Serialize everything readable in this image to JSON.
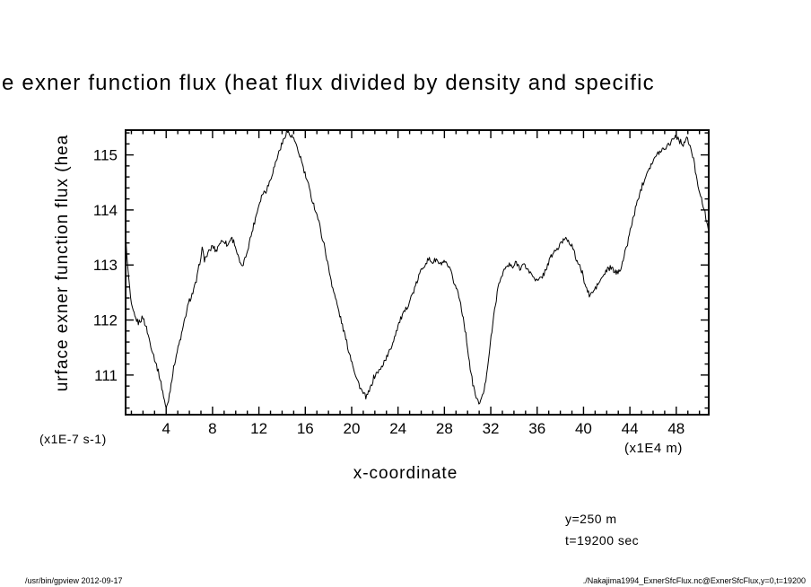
{
  "title_visible": "e exner function flux (heat flux divided by density and specific",
  "ylabel_visible": "urface exner function flux (hea",
  "xlabel": "x-coordinate",
  "y_unit_label": "(x1E-7 s-1)",
  "x_unit_label": "(x1E4 m)",
  "annotations": {
    "line1": "y=250 m",
    "line2": "t=19200 sec"
  },
  "footer_left": "/usr/bin/gpview  2012-09-17",
  "footer_right": "./Nakajima1994_ExnerSfcFlux.nc@ExnerSfcFlux,y=0,t=19200",
  "chart_data": {
    "type": "line",
    "title": "surface exner function flux (heat flux divided by density and specific heat)",
    "xlabel": "x-coordinate",
    "ylabel": "surface exner function flux (heat flux divided by density and specific heat)",
    "x_units": "x1E4 m",
    "y_units": "x1E-7 s-1",
    "xlim": [
      0.5,
      50.8
    ],
    "ylim": [
      110.28,
      115.45
    ],
    "x_ticks": [
      4,
      8,
      12,
      16,
      20,
      24,
      28,
      32,
      36,
      40,
      44,
      48
    ],
    "y_ticks": [
      111,
      112,
      113,
      114,
      115
    ],
    "x_minor_step": 1,
    "y_minor_step": 0.2,
    "grid": false,
    "legend": false,
    "line_color": "#000000",
    "noise_amplitude": 0.05,
    "annotations": [
      "y=250 m",
      "t=19200 sec"
    ],
    "points": [
      [
        0.5,
        113.55
      ],
      [
        0.7,
        112.9
      ],
      [
        1.0,
        112.25
      ],
      [
        1.3,
        112.05
      ],
      [
        1.6,
        111.95
      ],
      [
        2.0,
        112.05
      ],
      [
        2.3,
        111.85
      ],
      [
        2.6,
        111.6
      ],
      [
        3.0,
        111.3
      ],
      [
        3.4,
        111.0
      ],
      [
        3.7,
        110.7
      ],
      [
        4.0,
        110.38
      ],
      [
        4.2,
        110.55
      ],
      [
        4.5,
        110.95
      ],
      [
        4.8,
        111.3
      ],
      [
        5.1,
        111.55
      ],
      [
        5.4,
        111.8
      ],
      [
        5.7,
        112.1
      ],
      [
        6.0,
        112.35
      ],
      [
        6.3,
        112.5
      ],
      [
        6.6,
        112.7
      ],
      [
        6.9,
        113.05
      ],
      [
        7.1,
        113.3
      ],
      [
        7.3,
        113.1
      ],
      [
        7.6,
        113.2
      ],
      [
        8.0,
        113.35
      ],
      [
        8.3,
        113.25
      ],
      [
        8.6,
        113.4
      ],
      [
        9.0,
        113.45
      ],
      [
        9.3,
        113.35
      ],
      [
        9.6,
        113.5
      ],
      [
        9.9,
        113.4
      ],
      [
        10.2,
        113.15
      ],
      [
        10.5,
        112.95
      ],
      [
        10.8,
        113.1
      ],
      [
        11.1,
        113.35
      ],
      [
        11.4,
        113.6
      ],
      [
        11.7,
        113.85
      ],
      [
        12.0,
        114.1
      ],
      [
        12.3,
        114.3
      ],
      [
        12.6,
        114.35
      ],
      [
        12.9,
        114.5
      ],
      [
        13.2,
        114.7
      ],
      [
        13.5,
        114.9
      ],
      [
        13.8,
        115.1
      ],
      [
        14.1,
        115.25
      ],
      [
        14.4,
        115.45
      ],
      [
        14.7,
        115.35
      ],
      [
        15.0,
        115.3
      ],
      [
        15.3,
        115.1
      ],
      [
        15.6,
        114.95
      ],
      [
        15.9,
        114.7
      ],
      [
        16.2,
        114.5
      ],
      [
        16.5,
        114.25
      ],
      [
        16.8,
        114.05
      ],
      [
        17.1,
        113.85
      ],
      [
        17.4,
        113.55
      ],
      [
        17.7,
        113.3
      ],
      [
        18.0,
        112.95
      ],
      [
        18.3,
        112.65
      ],
      [
        18.6,
        112.4
      ],
      [
        18.9,
        112.15
      ],
      [
        19.2,
        111.9
      ],
      [
        19.5,
        111.65
      ],
      [
        19.8,
        111.4
      ],
      [
        20.1,
        111.2
      ],
      [
        20.4,
        110.95
      ],
      [
        20.7,
        110.8
      ],
      [
        21.0,
        110.65
      ],
      [
        21.3,
        110.6
      ],
      [
        21.6,
        110.75
      ],
      [
        21.9,
        110.95
      ],
      [
        22.2,
        111.05
      ],
      [
        22.5,
        111.1
      ],
      [
        22.8,
        111.25
      ],
      [
        23.1,
        111.35
      ],
      [
        23.4,
        111.5
      ],
      [
        23.7,
        111.7
      ],
      [
        24.0,
        111.9
      ],
      [
        24.3,
        112.05
      ],
      [
        24.6,
        112.15
      ],
      [
        24.9,
        112.3
      ],
      [
        25.2,
        112.45
      ],
      [
        25.5,
        112.6
      ],
      [
        25.8,
        112.8
      ],
      [
        26.1,
        112.95
      ],
      [
        26.4,
        113.05
      ],
      [
        26.7,
        113.1
      ],
      [
        27.0,
        113.05
      ],
      [
        27.3,
        113.1
      ],
      [
        27.6,
        113.0
      ],
      [
        27.9,
        113.05
      ],
      [
        28.2,
        113.0
      ],
      [
        28.5,
        112.9
      ],
      [
        28.8,
        112.7
      ],
      [
        29.1,
        112.55
      ],
      [
        29.4,
        112.3
      ],
      [
        29.7,
        111.95
      ],
      [
        30.0,
        111.5
      ],
      [
        30.3,
        111.0
      ],
      [
        30.6,
        110.7
      ],
      [
        30.9,
        110.5
      ],
      [
        31.2,
        110.55
      ],
      [
        31.5,
        110.8
      ],
      [
        31.8,
        111.3
      ],
      [
        32.1,
        111.8
      ],
      [
        32.4,
        112.3
      ],
      [
        32.7,
        112.65
      ],
      [
        33.0,
        112.85
      ],
      [
        33.3,
        112.95
      ],
      [
        33.6,
        113.0
      ],
      [
        33.9,
        112.95
      ],
      [
        34.2,
        113.05
      ],
      [
        34.5,
        112.95
      ],
      [
        34.8,
        113.0
      ],
      [
        35.1,
        112.95
      ],
      [
        35.4,
        112.85
      ],
      [
        35.7,
        112.8
      ],
      [
        36.0,
        112.7
      ],
      [
        36.3,
        112.75
      ],
      [
        36.6,
        112.85
      ],
      [
        36.9,
        113.0
      ],
      [
        37.2,
        113.15
      ],
      [
        37.5,
        113.25
      ],
      [
        37.8,
        113.3
      ],
      [
        38.1,
        113.4
      ],
      [
        38.4,
        113.5
      ],
      [
        38.7,
        113.45
      ],
      [
        39.0,
        113.35
      ],
      [
        39.3,
        113.15
      ],
      [
        39.6,
        113.0
      ],
      [
        39.9,
        112.85
      ],
      [
        40.2,
        112.6
      ],
      [
        40.5,
        112.45
      ],
      [
        40.8,
        112.5
      ],
      [
        41.1,
        112.6
      ],
      [
        41.4,
        112.7
      ],
      [
        41.7,
        112.8
      ],
      [
        42.0,
        112.9
      ],
      [
        42.3,
        112.95
      ],
      [
        42.6,
        112.9
      ],
      [
        42.9,
        112.85
      ],
      [
        43.2,
        112.95
      ],
      [
        43.5,
        113.15
      ],
      [
        43.8,
        113.4
      ],
      [
        44.1,
        113.7
      ],
      [
        44.4,
        113.95
      ],
      [
        44.7,
        114.2
      ],
      [
        45.0,
        114.4
      ],
      [
        45.3,
        114.6
      ],
      [
        45.6,
        114.75
      ],
      [
        45.9,
        114.85
      ],
      [
        46.2,
        114.95
      ],
      [
        46.5,
        115.05
      ],
      [
        46.8,
        115.1
      ],
      [
        47.1,
        115.15
      ],
      [
        47.4,
        115.2
      ],
      [
        47.7,
        115.3
      ],
      [
        48.0,
        115.35
      ],
      [
        48.3,
        115.25
      ],
      [
        48.6,
        115.2
      ],
      [
        48.9,
        115.3
      ],
      [
        49.2,
        115.15
      ],
      [
        49.5,
        114.9
      ],
      [
        49.8,
        114.55
      ],
      [
        50.1,
        114.25
      ],
      [
        50.4,
        114.0
      ],
      [
        50.7,
        113.75
      ],
      [
        50.8,
        113.6
      ]
    ]
  }
}
